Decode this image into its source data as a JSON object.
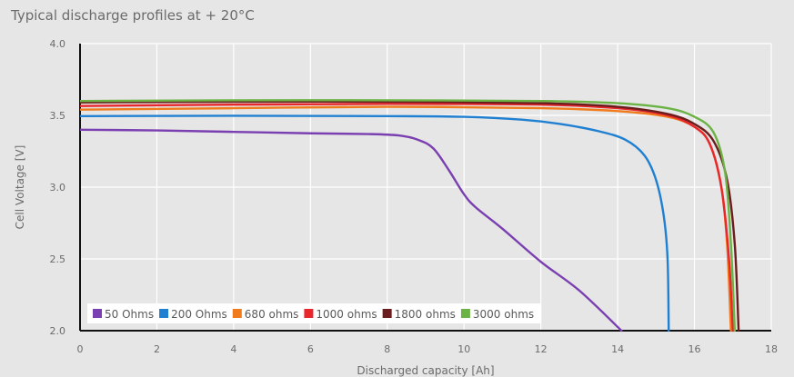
{
  "chart_data": {
    "type": "line",
    "title": "Typical discharge profiles at + 20°C",
    "xlabel": "Discharged capacity [Ah]",
    "ylabel": "Cell Voltage [V]",
    "xlim": [
      0,
      18
    ],
    "ylim": [
      2.0,
      4.0
    ],
    "x_ticks": [
      "0",
      "2",
      "4",
      "6",
      "8",
      "10",
      "12",
      "14",
      "16",
      "18"
    ],
    "y_ticks": [
      "2.0",
      "2.5",
      "3.0",
      "3.5",
      "4.0"
    ],
    "grid": true,
    "legend_placement": "bottom-left",
    "series": [
      {
        "name": "50 Ohms",
        "color": "#7a3fb0",
        "points": [
          [
            0,
            3.4
          ],
          [
            2,
            3.395
          ],
          [
            4,
            3.385
          ],
          [
            6,
            3.375
          ],
          [
            7.5,
            3.37
          ],
          [
            8.3,
            3.36
          ],
          [
            8.8,
            3.33
          ],
          [
            9.2,
            3.27
          ],
          [
            9.6,
            3.12
          ],
          [
            10.0,
            2.95
          ],
          [
            10.3,
            2.86
          ],
          [
            11,
            2.71
          ],
          [
            12,
            2.48
          ],
          [
            13,
            2.28
          ],
          [
            14.1,
            2.0
          ]
        ]
      },
      {
        "name": "200 Ohms",
        "color": "#1f7fd1",
        "points": [
          [
            0,
            3.495
          ],
          [
            4,
            3.497
          ],
          [
            8,
            3.495
          ],
          [
            10,
            3.49
          ],
          [
            11.5,
            3.47
          ],
          [
            12.5,
            3.44
          ],
          [
            13.5,
            3.39
          ],
          [
            14.2,
            3.33
          ],
          [
            14.7,
            3.22
          ],
          [
            15.0,
            3.05
          ],
          [
            15.2,
            2.8
          ],
          [
            15.3,
            2.5
          ],
          [
            15.33,
            2.0
          ]
        ]
      },
      {
        "name": "680 ohms",
        "color": "#f07b1c",
        "points": [
          [
            0,
            3.54
          ],
          [
            4,
            3.55
          ],
          [
            8,
            3.56
          ],
          [
            12,
            3.55
          ],
          [
            14,
            3.53
          ],
          [
            15.3,
            3.49
          ],
          [
            16,
            3.42
          ],
          [
            16.4,
            3.3
          ],
          [
            16.7,
            3.0
          ],
          [
            16.85,
            2.6
          ],
          [
            16.95,
            2.0
          ]
        ]
      },
      {
        "name": "1000 ohms",
        "color": "#e8262b",
        "points": [
          [
            0,
            3.565
          ],
          [
            4,
            3.575
          ],
          [
            8,
            3.58
          ],
          [
            12,
            3.575
          ],
          [
            14,
            3.55
          ],
          [
            15.3,
            3.5
          ],
          [
            16,
            3.42
          ],
          [
            16.4,
            3.3
          ],
          [
            16.7,
            3.0
          ],
          [
            16.9,
            2.5
          ],
          [
            17.0,
            2.0
          ]
        ]
      },
      {
        "name": "1800 ohms",
        "color": "#6b1d1d",
        "points": [
          [
            0,
            3.59
          ],
          [
            4,
            3.595
          ],
          [
            8,
            3.595
          ],
          [
            12,
            3.585
          ],
          [
            14,
            3.56
          ],
          [
            15.3,
            3.51
          ],
          [
            16,
            3.44
          ],
          [
            16.5,
            3.32
          ],
          [
            16.85,
            3.05
          ],
          [
            17.05,
            2.6
          ],
          [
            17.15,
            2.0
          ]
        ]
      },
      {
        "name": "3000 ohms",
        "color": "#6ab344",
        "points": [
          [
            0,
            3.6
          ],
          [
            4,
            3.605
          ],
          [
            8,
            3.605
          ],
          [
            12,
            3.6
          ],
          [
            14,
            3.585
          ],
          [
            15.3,
            3.55
          ],
          [
            16,
            3.49
          ],
          [
            16.5,
            3.38
          ],
          [
            16.8,
            3.1
          ],
          [
            16.95,
            2.6
          ],
          [
            17.05,
            2.0
          ]
        ]
      }
    ]
  }
}
